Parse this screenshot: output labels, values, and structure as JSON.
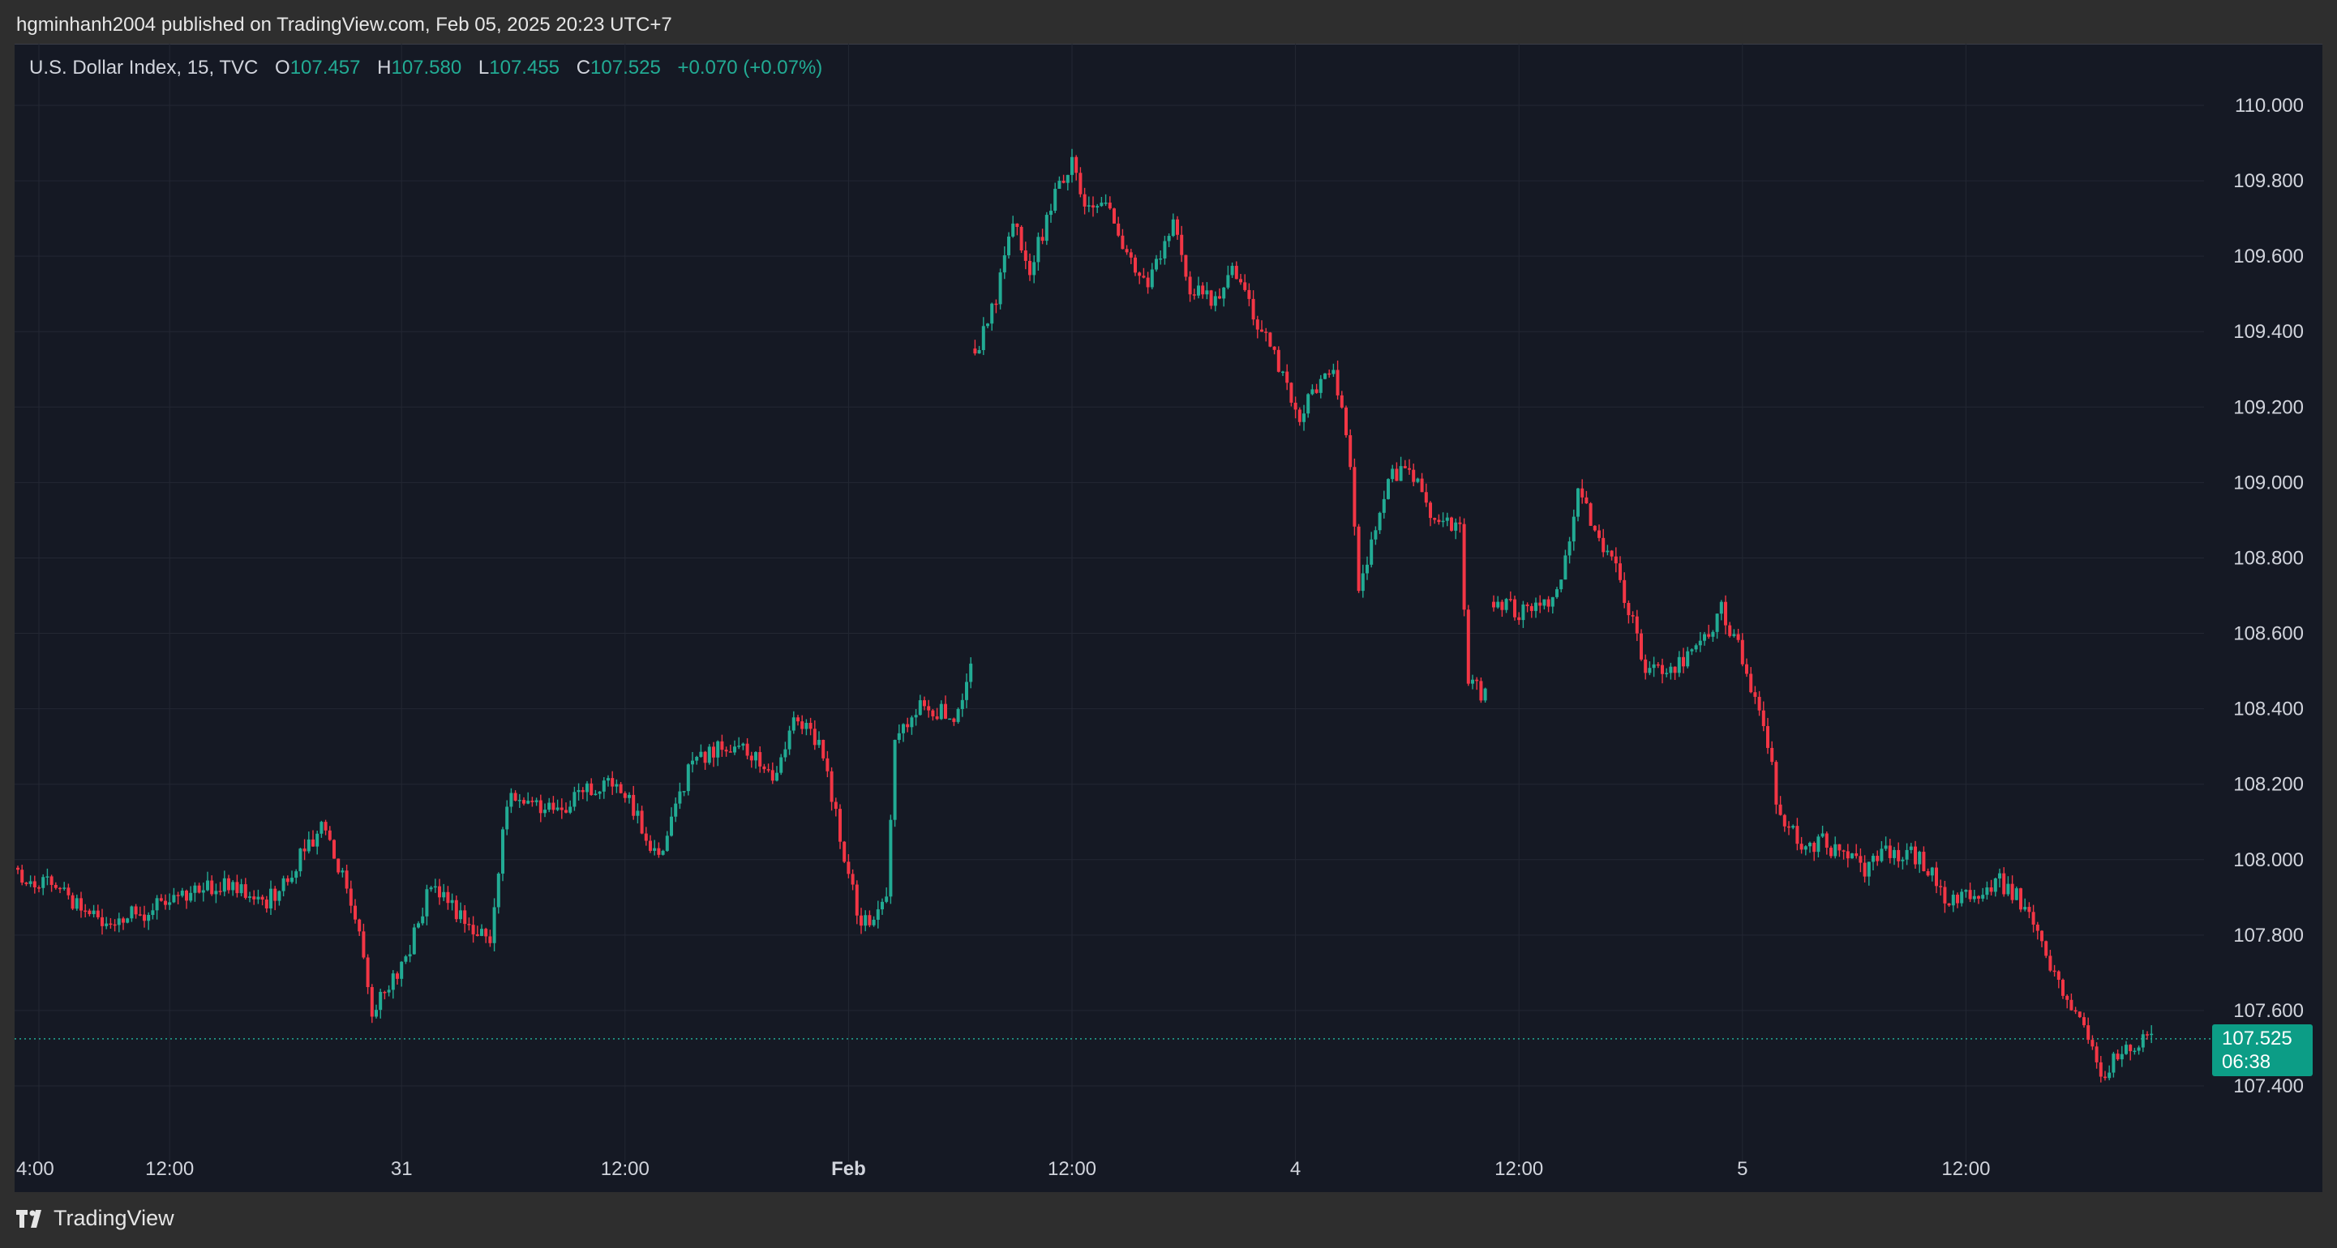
{
  "header": {
    "published_by": "hgminhanh2004 published on TradingView.com, Feb 05, 2025 20:23 UTC+7"
  },
  "legend": {
    "symbol": "U.S. Dollar Index, 15, TVC",
    "open_label": "O",
    "open_value": "107.457",
    "high_label": "H",
    "high_value": "107.580",
    "low_label": "L",
    "low_value": "107.455",
    "close_label": "C",
    "close_value": "107.525",
    "change": "+0.070 (+0.07%)"
  },
  "price_tag": {
    "price": "107.525",
    "countdown": "06:38"
  },
  "branding": {
    "logo_text": "TradingView"
  },
  "colors": {
    "background": "#151924",
    "up": "#22ab94",
    "down": "#f23645",
    "grid": "#232733",
    "axis_text": "#d1d4dc",
    "frame": "#2e2e2e"
  },
  "chart_data": {
    "type": "candlestick",
    "title": "U.S. Dollar Index, 15, TVC",
    "timeframe": "15",
    "ylim": [
      107.3,
      110.1
    ],
    "y_ticks": [
      "110.000",
      "109.800",
      "109.600",
      "109.400",
      "109.200",
      "109.000",
      "108.800",
      "108.600",
      "108.400",
      "108.200",
      "108.000",
      "107.800",
      "107.600",
      "107.400"
    ],
    "x_ticks": [
      "4:00",
      "12:00",
      "31",
      "12:00",
      "Feb",
      "12:00",
      "4",
      "12:00",
      "5",
      "12:00"
    ],
    "last_price": 107.525,
    "grid": true,
    "segments": [
      {
        "anchors": [
          [
            0,
            107.96
          ],
          [
            8,
            107.93
          ],
          [
            15,
            107.88
          ],
          [
            20,
            107.84
          ],
          [
            30,
            107.86
          ],
          [
            40,
            107.91
          ],
          [
            50,
            107.94
          ],
          [
            58,
            107.87
          ],
          [
            66,
            107.99
          ],
          [
            72,
            108.08
          ],
          [
            76,
            107.98
          ],
          [
            80,
            107.85
          ],
          [
            84,
            107.6
          ],
          [
            92,
            107.74
          ],
          [
            98,
            107.94
          ],
          [
            104,
            107.86
          ],
          [
            112,
            107.79
          ],
          [
            116,
            108.15
          ],
          [
            120,
            108.16
          ],
          [
            128,
            108.13
          ],
          [
            134,
            108.18
          ],
          [
            142,
            108.21
          ],
          [
            148,
            108.09
          ],
          [
            152,
            108.0
          ],
          [
            160,
            108.27
          ],
          [
            166,
            108.29
          ],
          [
            172,
            108.31
          ],
          [
            180,
            108.21
          ],
          [
            184,
            108.4
          ],
          [
            190,
            108.31
          ],
          [
            194,
            108.12
          ],
          [
            200,
            107.81
          ],
          [
            206,
            107.92
          ],
          [
            208,
            108.31
          ],
          [
            214,
            108.4
          ],
          [
            222,
            108.39
          ],
          [
            226,
            108.5
          ]
        ],
        "start_x": 0,
        "end_x": 226
      },
      {
        "anchors": [
          [
            227,
            109.35
          ],
          [
            232,
            109.48
          ],
          [
            236,
            109.7
          ],
          [
            240,
            109.55
          ],
          [
            246,
            109.78
          ],
          [
            250,
            109.84
          ],
          [
            254,
            109.72
          ],
          [
            258,
            109.76
          ],
          [
            262,
            109.63
          ],
          [
            268,
            109.52
          ],
          [
            274,
            109.68
          ],
          [
            278,
            109.52
          ],
          [
            284,
            109.48
          ],
          [
            288,
            109.57
          ],
          [
            294,
            109.43
          ],
          [
            298,
            109.33
          ],
          [
            304,
            109.18
          ],
          [
            308,
            109.25
          ],
          [
            312,
            109.29
          ],
          [
            316,
            109.06
          ],
          [
            318,
            108.7
          ],
          [
            322,
            108.88
          ],
          [
            326,
            109.02
          ],
          [
            330,
            109.05
          ],
          [
            334,
            108.93
          ],
          [
            338,
            108.9
          ],
          [
            342,
            108.88
          ],
          [
            344,
            108.49
          ],
          [
            348,
            108.43
          ]
        ],
        "start_x": 227,
        "end_x": 348
      },
      {
        "anchors": [
          [
            350,
            108.69
          ],
          [
            356,
            108.66
          ],
          [
            362,
            108.68
          ],
          [
            366,
            108.74
          ],
          [
            370,
            108.96
          ],
          [
            374,
            108.88
          ],
          [
            378,
            108.8
          ],
          [
            382,
            108.66
          ],
          [
            386,
            108.52
          ],
          [
            392,
            108.51
          ],
          [
            398,
            108.56
          ],
          [
            404,
            108.66
          ],
          [
            408,
            108.56
          ],
          [
            414,
            108.37
          ],
          [
            418,
            108.1
          ],
          [
            424,
            108.03
          ],
          [
            428,
            108.05
          ],
          [
            432,
            108.01
          ],
          [
            438,
            107.98
          ],
          [
            444,
            108.02
          ],
          [
            450,
            108.01
          ],
          [
            454,
            107.96
          ],
          [
            458,
            107.89
          ],
          [
            464,
            107.9
          ],
          [
            470,
            107.94
          ],
          [
            474,
            107.91
          ],
          [
            478,
            107.82
          ],
          [
            482,
            107.7
          ],
          [
            486,
            107.64
          ],
          [
            490,
            107.55
          ],
          [
            494,
            107.42
          ],
          [
            498,
            107.48
          ],
          [
            502,
            107.51
          ],
          [
            506,
            107.525
          ]
        ],
        "start_x": 350,
        "end_x": 506
      }
    ],
    "x_tick_positions": [
      5,
      36,
      91,
      144,
      197,
      250,
      303,
      356,
      409,
      462
    ]
  }
}
